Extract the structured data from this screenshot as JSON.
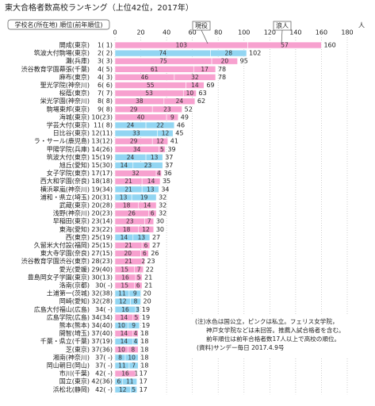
{
  "chart_data": {
    "type": "bar",
    "orientation": "horizontal",
    "stacked": true,
    "title": "東大合格者数高校ランキング（上位42位，2017年）",
    "header_label": "学校名(所在地) 順位(前年順位)",
    "x_unit": "人",
    "categories": [
      "開成(東京)",
      "筑波大付駒場(東京)",
      "灘(兵庫)",
      "渋谷教育学園幕張(千葉)",
      "麻布(東京)",
      "聖光学院(神奈川)",
      "桜蔭(東京)",
      "栄光学園(神奈川)",
      "駒場東邦(東京)",
      "海城(東京)",
      "学芸大付(東京)",
      "日比谷(東京)",
      "ラ・サール(鹿児島)",
      "甲陽学院(兵庫)",
      "筑波大付(東京)",
      "旭丘(愛知)",
      "女子学院(東京)",
      "西大和学園(奈良)",
      "横浜翠嵐(神奈川)",
      "浦和・県立(埼玉)",
      "武蔵(東京)",
      "浅野(神奈川)",
      "早稲田(東京)",
      "東海(愛知)",
      "西(東京)",
      "久留米大付設(福岡)",
      "東大寺学園(奈良)",
      "渋谷教育学園渋谷(東京)",
      "愛光(愛媛)",
      "豊島岡女子学園(東京)",
      "洛南(京都)",
      "土浦第一(茨城)",
      "岡崎(愛知)",
      "広島大付福山(広島)",
      "広島学院(広島)",
      "熊本(熊本)",
      "開智(埼玉)",
      "千葉・県立(千葉)",
      "芝(東京)",
      "湘南(神奈川)",
      "岡山朝日(岡山)",
      "市川(千葉)",
      "国立(東京)",
      "浜松北(静岡)"
    ],
    "ranks": [
      "1( 1)",
      "2( 2)",
      "3( 3)",
      "4( 5)",
      "4( 3)",
      "6( 6)",
      "7( 7)",
      "8( 8)",
      "9( 8)",
      "10(23)",
      "11( 8)",
      "12(11)",
      "13(12)",
      "14(26)",
      "15(19)",
      "15(30)",
      "17(17)",
      "18(18)",
      "19(34)",
      "20(31)",
      "20(28)",
      "20(23)",
      "23(14)",
      "23(22)",
      "25(19)",
      "25(15)",
      "27(15)",
      "28(23)",
      "29(40)",
      "30(13)",
      "30( -)",
      "32(38)",
      "32(28)",
      "34( -)",
      "34(34)",
      "34(40)",
      "37(40)",
      "37(19)",
      "37(36)",
      "37( -)",
      "37( -)",
      "42( -)",
      "42(36)",
      "42( -)"
    ],
    "series": [
      {
        "name": "現役",
        "values": [
          103,
          74,
          75,
          61,
          46,
          55,
          53,
          38,
          29,
          40,
          24,
          33,
          29,
          34,
          24,
          14,
          32,
          21,
          21,
          13,
          18,
          26,
          23,
          18,
          14,
          21,
          20,
          21,
          15,
          16,
          15,
          11,
          12,
          16,
          14,
          10,
          14,
          14,
          10,
          8,
          11,
          16,
          6,
          12
        ]
      },
      {
        "name": "浪人",
        "values": [
          57,
          28,
          20,
          17,
          32,
          14,
          10,
          24,
          23,
          9,
          22,
          12,
          12,
          5,
          13,
          23,
          4,
          14,
          13,
          19,
          14,
          6,
          7,
          12,
          13,
          6,
          6,
          2,
          7,
          5,
          6,
          9,
          8,
          3,
          5,
          9,
          4,
          4,
          8,
          10,
          7,
          1,
          11,
          5
        ]
      }
    ],
    "totals": [
      160,
      102,
      95,
      78,
      78,
      69,
      63,
      62,
      52,
      49,
      46,
      45,
      41,
      39,
      37,
      37,
      36,
      35,
      34,
      32,
      32,
      32,
      30,
      30,
      27,
      27,
      26,
      23,
      22,
      21,
      21,
      20,
      20,
      19,
      19,
      19,
      18,
      18,
      18,
      18,
      18,
      17,
      17,
      17
    ],
    "bar_colors": [
      "#f7a1cf",
      "#92d5f2",
      "#f7a1cf",
      "#f7a1cf",
      "#f7a1cf",
      "#f7a1cf",
      "#f7a1cf",
      "#f7a1cf",
      "#f7a1cf",
      "#f7a1cf",
      "#92d5f2",
      "#92d5f2",
      "#f7a1cf",
      "#f7a1cf",
      "#92d5f2",
      "#92d5f2",
      "#f7a1cf",
      "#f7a1cf",
      "#92d5f2",
      "#92d5f2",
      "#f7a1cf",
      "#f7a1cf",
      "#f7a1cf",
      "#f7a1cf",
      "#92d5f2",
      "#f7a1cf",
      "#f7a1cf",
      "#f7a1cf",
      "#f7a1cf",
      "#f7a1cf",
      "#f7a1cf",
      "#92d5f2",
      "#92d5f2",
      "#92d5f2",
      "#f7a1cf",
      "#92d5f2",
      "#f7a1cf",
      "#92d5f2",
      "#f7a1cf",
      "#92d5f2",
      "#92d5f2",
      "#f7a1cf",
      "#92d5f2",
      "#92d5f2"
    ],
    "xlim": [
      0,
      180
    ],
    "xticks": [
      0,
      20,
      40,
      60,
      80,
      100,
      120,
      140,
      160,
      180
    ],
    "grid": true,
    "notes": [
      "(注)水色は国公立，ピンクは私立。フェリス女学院，",
      "神戸女学院などは未回答。推薦入試合格者を含む。",
      "前年順位は前年合格者数17人以上で高校の順位。",
      "(資料)サンデー毎日 2017.4.9号"
    ]
  }
}
